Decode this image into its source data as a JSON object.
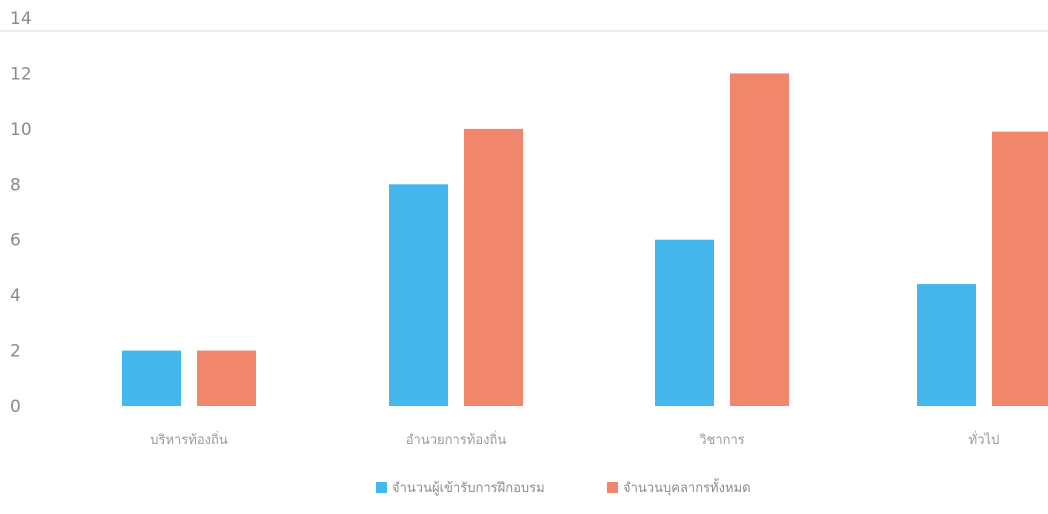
{
  "chart_data": {
    "type": "bar",
    "categories": [
      "บริหารท้องถิ่น",
      "อำนวยการท้องถิ่น",
      "วิชาการ",
      "ทั่วไป"
    ],
    "series": [
      {
        "name": "จำนวนผู้เข้ารับการฝึกอบรม",
        "values": [
          2,
          8,
          6,
          4.4
        ],
        "color": "#44b8ec"
      },
      {
        "name": "จำนวนบุคลากรทั้งหมด",
        "values": [
          2,
          10,
          12,
          9.9
        ],
        "color": "#f0876c"
      }
    ],
    "yticks": [
      "0",
      "2",
      "4",
      "6",
      "8",
      "10",
      "12",
      "14"
    ],
    "ylim": [
      0,
      14
    ],
    "grid": false,
    "legend_position": "bottom"
  }
}
